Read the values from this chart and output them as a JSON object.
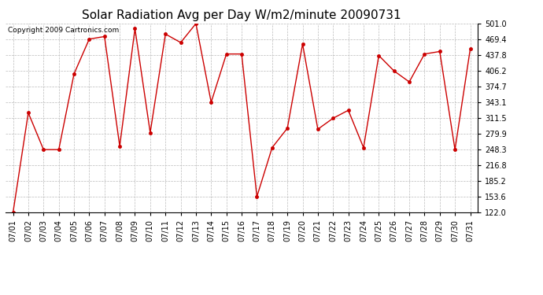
{
  "title": "Solar Radiation Avg per Day W/m2/minute 20090731",
  "copyright": "Copyright 2009 Cartronics.com",
  "x_labels": [
    "07/01",
    "07/02",
    "07/03",
    "07/04",
    "07/05",
    "07/06",
    "07/07",
    "07/08",
    "07/09",
    "07/10",
    "07/11",
    "07/12",
    "07/13",
    "07/14",
    "07/15",
    "07/16",
    "07/17",
    "07/18",
    "07/19",
    "07/20",
    "07/21",
    "07/22",
    "07/23",
    "07/24",
    "07/25",
    "07/26",
    "07/27",
    "07/28",
    "07/29",
    "07/30",
    "07/31"
  ],
  "values": [
    122.0,
    322.0,
    248.0,
    248.0,
    400.0,
    470.0,
    475.0,
    255.0,
    491.0,
    282.0,
    480.0,
    463.0,
    501.0,
    343.0,
    440.0,
    440.0,
    153.6,
    252.0,
    291.0,
    460.0,
    289.0,
    311.0,
    327.0,
    252.0,
    437.0,
    406.0,
    384.0,
    440.0,
    445.0,
    248.0,
    450.0
  ],
  "line_color": "#cc0000",
  "marker_color": "#cc0000",
  "bg_color": "#ffffff",
  "grid_color": "#bbbbbb",
  "ylim_min": 122.0,
  "ylim_max": 501.0,
  "yticks": [
    122.0,
    153.6,
    185.2,
    216.8,
    248.3,
    279.9,
    311.5,
    343.1,
    374.7,
    406.2,
    437.8,
    469.4,
    501.0
  ],
  "title_fontsize": 11,
  "copyright_fontsize": 6.5,
  "tick_fontsize": 7,
  "marker_size": 3,
  "line_width": 1.0
}
